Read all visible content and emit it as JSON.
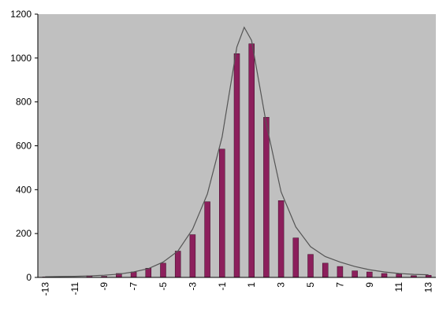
{
  "chart_data": {
    "type": "bar",
    "categories": [
      "-13",
      null,
      "-11",
      null,
      "-9",
      null,
      "-7",
      null,
      "-5",
      null,
      "-3",
      null,
      "-1",
      null,
      "1",
      null,
      "3",
      null,
      "5",
      null,
      "7",
      null,
      "9",
      null,
      "11",
      null,
      "13"
    ],
    "series": [
      {
        "type": "bar",
        "color": "#8c1f5c",
        "values": [
          2,
          0,
          0,
          8,
          5,
          18,
          25,
          42,
          65,
          120,
          195,
          345,
          585,
          1020,
          1065,
          730,
          350,
          180,
          105,
          65,
          50,
          30,
          25,
          18,
          15,
          8,
          10
        ]
      },
      {
        "type": "line",
        "color": "#555555",
        "x": [
          -13,
          -12,
          -11,
          -10,
          -9,
          -8,
          -7,
          -6,
          -5,
          -4,
          -3,
          -2,
          -1,
          0,
          0.5,
          1,
          2,
          3,
          4,
          5,
          6,
          7,
          8,
          9,
          10,
          11,
          12,
          13
        ],
        "values": [
          3,
          4,
          5,
          7,
          10,
          15,
          25,
          40,
          70,
          120,
          220,
          380,
          640,
          1050,
          1140,
          1080,
          700,
          390,
          230,
          140,
          95,
          70,
          50,
          35,
          25,
          18,
          14,
          12
        ]
      }
    ],
    "xlim": [
      -13,
      13
    ],
    "ylim": [
      0,
      1200
    ],
    "yticks": [
      0,
      200,
      400,
      600,
      800,
      1000,
      1200
    ],
    "background": "#c0c0c0",
    "grid": false
  }
}
